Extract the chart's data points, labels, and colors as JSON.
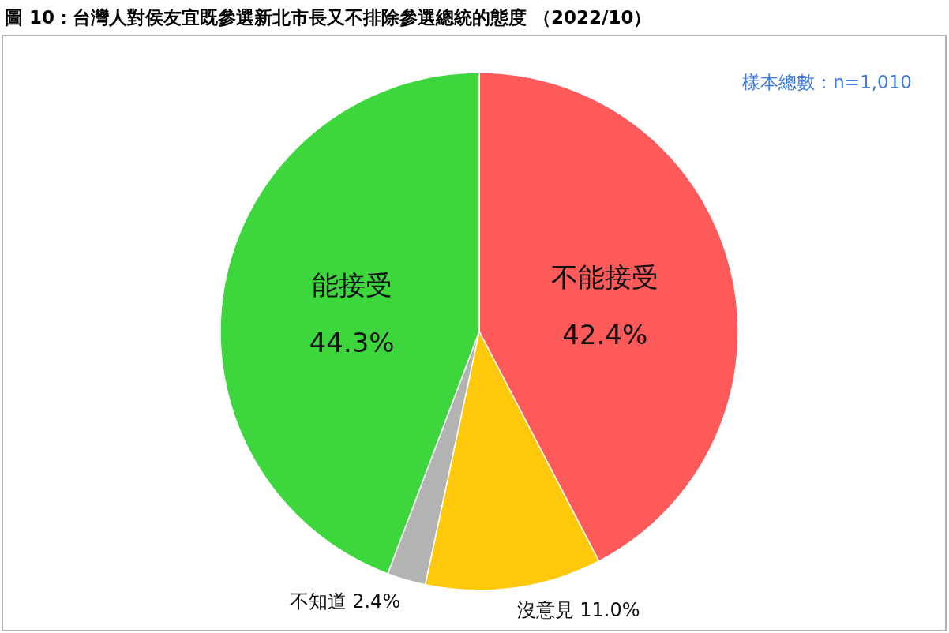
{
  "chart_data": {
    "type": "pie",
    "title": "圖 10：台灣人對侯友宜既參選新北市長又不排除參選總統的態度 （2022/10）",
    "annotations": [
      "樣本總數：n=1,010"
    ],
    "categories": [
      "不能接受",
      "沒意見",
      "不知道",
      "能接受"
    ],
    "values": [
      42.4,
      11.0,
      2.4,
      44.3
    ],
    "value_labels": [
      "42.4%",
      "11.0%",
      "2.4%",
      "44.3%"
    ],
    "colors": [
      "#fe5a5a",
      "#ffc90a",
      "#b3b3b3",
      "#3dd63d"
    ]
  }
}
